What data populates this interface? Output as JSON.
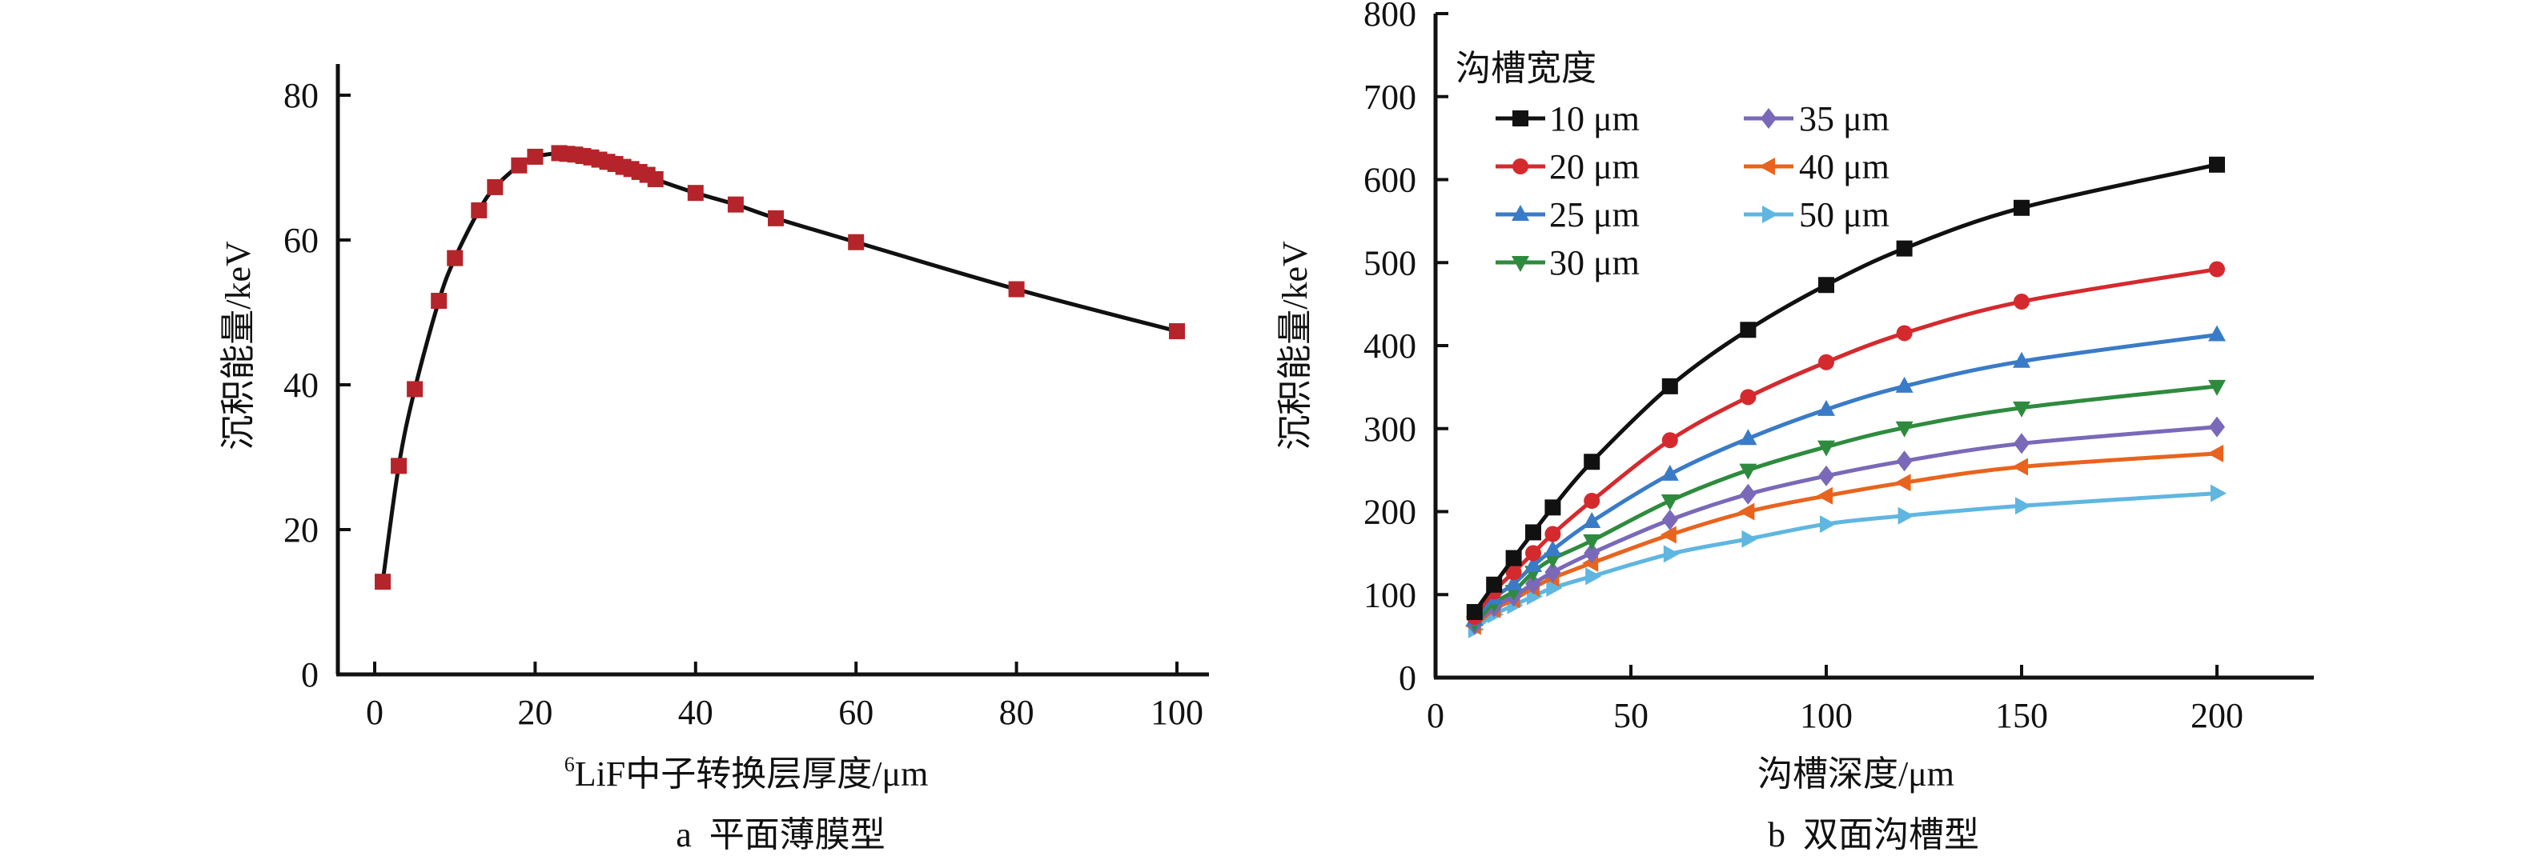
{
  "chart_data": [
    {
      "id": "a",
      "type": "line",
      "caption": "a  平面薄膜型",
      "xlabel_sup": "6",
      "xlabel": "LiF中子转换层厚度/μm",
      "ylabel": "沉积能量/keV",
      "xlim": [
        -5,
        104
      ],
      "ylim": [
        0,
        84
      ],
      "xticks": [
        0,
        20,
        40,
        60,
        80,
        100
      ],
      "yticks": [
        0,
        20,
        40,
        60,
        80
      ],
      "grid": false,
      "series": [
        {
          "name": "沉积能量",
          "color": "#111111",
          "marker": "square",
          "marker_color": "#b5242a",
          "x": [
            1,
            3,
            5,
            8,
            10,
            13,
            15,
            18,
            20,
            23,
            24,
            25,
            26,
            27,
            28,
            29,
            30,
            31,
            32,
            33,
            34,
            35,
            40,
            45,
            50,
            60,
            80,
            100
          ],
          "y": [
            12.8,
            28.8,
            39.4,
            51.6,
            57.5,
            64.1,
            67.3,
            70.3,
            71.5,
            72.0,
            71.9,
            71.8,
            71.6,
            71.4,
            71.1,
            70.8,
            70.5,
            70.1,
            69.8,
            69.4,
            69.0,
            68.4,
            66.5,
            64.9,
            63.0,
            59.7,
            53.2,
            47.4
          ]
        }
      ]
    },
    {
      "id": "b",
      "type": "line",
      "caption": "b  双面沟槽型",
      "xlabel": "沟槽深度/μm",
      "ylabel": "沉积能量/keV",
      "xlim": [
        0,
        225
      ],
      "ylim": [
        0,
        800
      ],
      "xticks": [
        0,
        50,
        100,
        150,
        200
      ],
      "yticks": [
        0,
        100,
        200,
        300,
        400,
        500,
        600,
        700,
        800
      ],
      "grid": false,
      "legend": {
        "title": "沟槽宽度",
        "position": "top-left",
        "columns": 2
      },
      "x": [
        10,
        15,
        20,
        25,
        30,
        40,
        60,
        80,
        100,
        120,
        150,
        200
      ],
      "series": [
        {
          "name": "10 μm",
          "color": "#111111",
          "marker": "square",
          "values": [
            79,
            112,
            144,
            175,
            205,
            260,
            351,
            419,
            473,
            517,
            566,
            618
          ]
        },
        {
          "name": "20 μm",
          "color": "#d42a2e",
          "marker": "circle",
          "values": [
            73,
            104,
            127,
            150,
            173,
            213,
            286,
            338,
            380,
            415,
            453,
            492
          ]
        },
        {
          "name": "25 μm",
          "color": "#3a7bc8",
          "marker": "triangle-up",
          "values": [
            70,
            96,
            113,
            135,
            154,
            188,
            245,
            288,
            323,
            351,
            381,
            413
          ]
        },
        {
          "name": "30 μm",
          "color": "#2e8b3e",
          "marker": "triangle-down",
          "values": [
            66,
            90,
            104,
            127,
            143,
            165,
            213,
            250,
            278,
            301,
            325,
            351
          ]
        },
        {
          "name": "35 μm",
          "color": "#7a68b8",
          "marker": "diamond",
          "values": [
            64,
            85,
            98,
            113,
            127,
            150,
            190,
            221,
            243,
            261,
            282,
            302
          ]
        },
        {
          "name": "40 μm",
          "color": "#e8641e",
          "marker": "triangle-left",
          "values": [
            62,
            82,
            94,
            108,
            120,
            138,
            172,
            200,
            219,
            235,
            254,
            270
          ]
        },
        {
          "name": "50 μm",
          "color": "#5fb6e0",
          "marker": "triangle-right",
          "values": [
            58,
            76,
            87,
            98,
            108,
            122,
            149,
            167,
            185,
            195,
            207,
            222
          ]
        }
      ]
    }
  ]
}
